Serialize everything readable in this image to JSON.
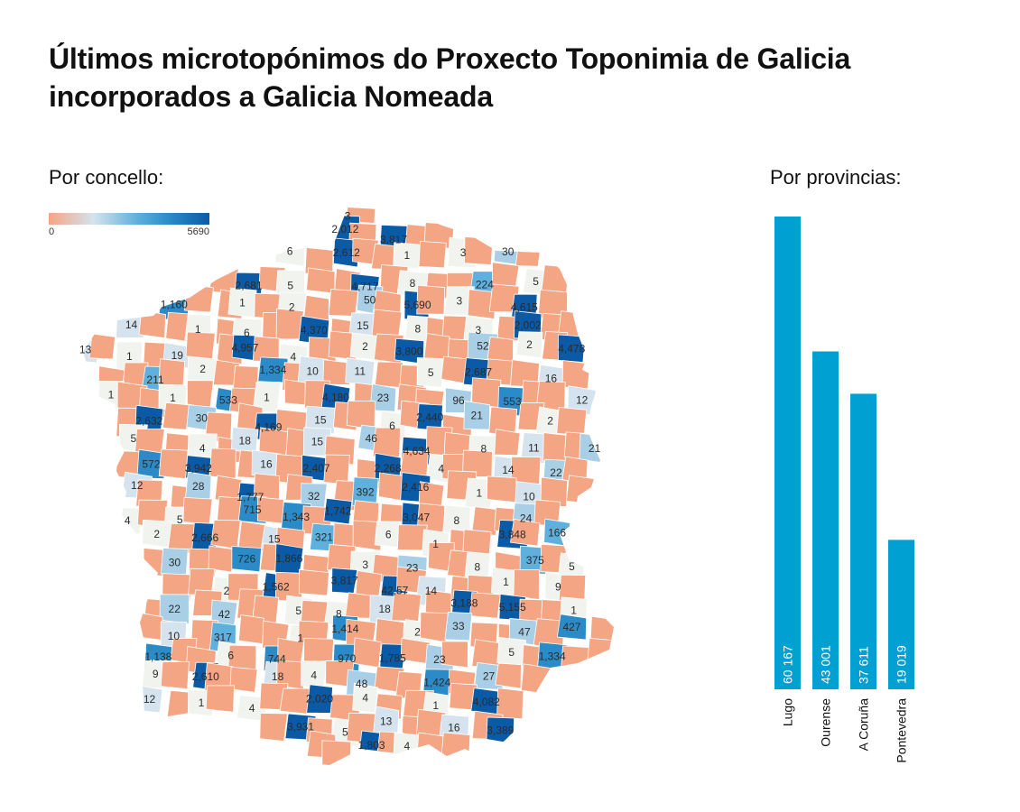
{
  "title_line1": "Últimos microtopónimos do Proxecto Toponimia de Galicia",
  "title_line2": "incorporados a Galicia Nomeada",
  "map_section_label": "Por concello:",
  "provinces_section_label": "Por provincias:",
  "legend": {
    "min_label": "0",
    "max_label": "5690",
    "colors": [
      "#f4a583",
      "#d4e3ee",
      "#5fb0dc",
      "#2a8bc8",
      "#0b5aa6"
    ]
  },
  "colors": {
    "bar": "#00a0d2",
    "zero_region": "#f4a583",
    "low_region": "#f1f4ee"
  },
  "chart_data": [
    {
      "type": "bar",
      "title": "Por provincias:",
      "categories": [
        "Lugo",
        "Ourense",
        "A Coruña",
        "Pontevedra"
      ],
      "values": [
        60167,
        43001,
        37611,
        19019
      ],
      "value_labels": [
        "60 167",
        "43 001",
        "37 611",
        "19 019"
      ],
      "orientation": "vertical",
      "ylim": [
        0,
        60167
      ]
    },
    {
      "type": "heatmap",
      "title": "Por concello:",
      "scale_min": 0,
      "scale_max": 5690,
      "municipality_values": [
        "3",
        "2,012",
        "3,817",
        "6",
        "2,612",
        "1",
        "3",
        "30",
        "2,681",
        "5",
        "4,717",
        "8",
        "224",
        "5",
        "1,160",
        "1",
        "2",
        "50",
        "5,690",
        "3",
        "4,615",
        "14",
        "1",
        "6",
        "4,370",
        "15",
        "8",
        "3",
        "2,002",
        "13",
        "1",
        "19",
        "4,957",
        "4",
        "2",
        "3,800",
        "52",
        "2",
        "4,478",
        "211",
        "2",
        "1,334",
        "10",
        "11",
        "5",
        "2,687",
        "16",
        "1",
        "1",
        "533",
        "1",
        "4,180",
        "23",
        "96",
        "553",
        "12",
        "2,632",
        "30",
        "4,169",
        "15",
        "6",
        "2,440",
        "21",
        "2",
        "5",
        "4",
        "18",
        "15",
        "46",
        "4,634",
        "8",
        "11",
        "21",
        "572",
        "3,942",
        "16",
        "2,407",
        "2,268",
        "4",
        "14",
        "22",
        "12",
        "28",
        "1,777",
        "32",
        "392",
        "2,416",
        "1",
        "10",
        "4",
        "5",
        "715",
        "1,343",
        "1,742",
        "3,047",
        "8",
        "24",
        "2",
        "2,666",
        "15",
        "321",
        "6",
        "1",
        "3,848",
        "166",
        "30",
        "726",
        "1,866",
        "3",
        "23",
        "8",
        "375",
        "5",
        "2",
        "1,562",
        "3,817",
        "42,57",
        "14",
        "1",
        "9",
        "22",
        "42",
        "5",
        "8",
        "18",
        "3,188",
        "5,155",
        "1",
        "10",
        "317",
        "1",
        "1,414",
        "2",
        "33",
        "47",
        "427",
        "1,138",
        "6",
        "744",
        "970",
        "1,785",
        "23",
        "5",
        "1,334",
        "9",
        "2,610",
        "18",
        "4",
        "48",
        "1,424",
        "27",
        "12",
        "1",
        "4",
        "2,020",
        "4",
        "1",
        "4,082",
        "3,931",
        "5",
        "13",
        "16",
        "3,389",
        "1,803",
        "4"
      ]
    }
  ]
}
